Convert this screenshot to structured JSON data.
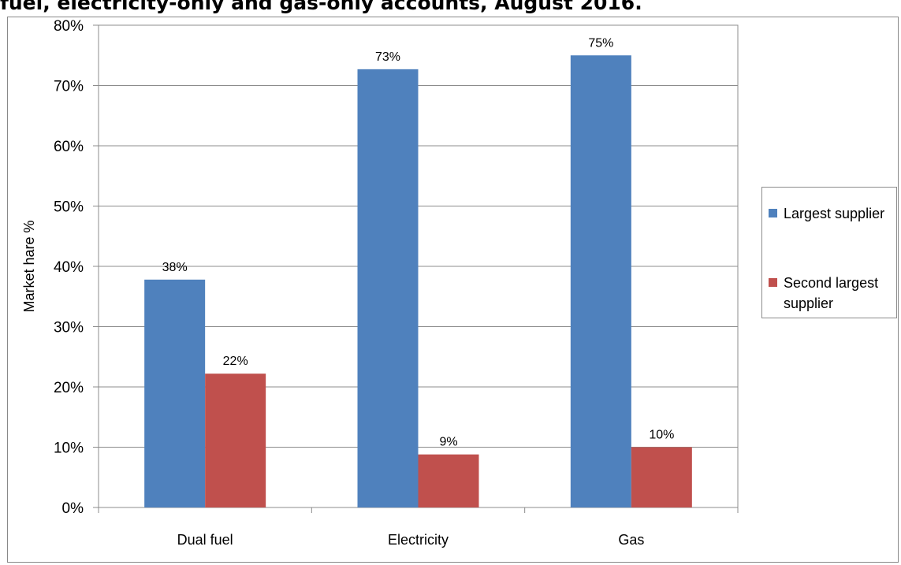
{
  "chart_data": {
    "type": "bar",
    "title": "fuel, electricity-only and gas-only accounts, August 2016.",
    "xlabel": "",
    "ylabel": "Market hare %",
    "ylim": [
      0,
      80
    ],
    "ytick_step": 10,
    "ytick_labels": [
      "0%",
      "10%",
      "20%",
      "30%",
      "40%",
      "50%",
      "60%",
      "70%",
      "80%"
    ],
    "categories": [
      "Dual fuel",
      "Electricity",
      "Gas"
    ],
    "series": [
      {
        "name": "Largest supplier",
        "color": "#4f81bd",
        "values": [
          37.8,
          72.7,
          75.0
        ],
        "data_labels": [
          "38%",
          "73%",
          "75%"
        ]
      },
      {
        "name": "Second largest supplier",
        "color": "#c0504d",
        "values": [
          22.2,
          8.8,
          10.0
        ],
        "data_labels": [
          "22%",
          "9%",
          "10%"
        ]
      }
    ],
    "grid": true,
    "legend": "right"
  }
}
